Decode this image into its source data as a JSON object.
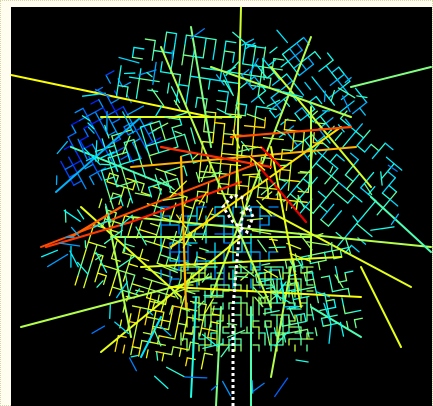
{
  "map": {
    "background": "#000000",
    "frame_color": "#fffdf0",
    "colormap": "jet",
    "colormap_stops": [
      "#0000ff",
      "#0080ff",
      "#00ffff",
      "#80ff80",
      "#ffff00",
      "#ff8000",
      "#ff0000"
    ],
    "route_color": "#ffffff",
    "route_style": "dotted"
  }
}
